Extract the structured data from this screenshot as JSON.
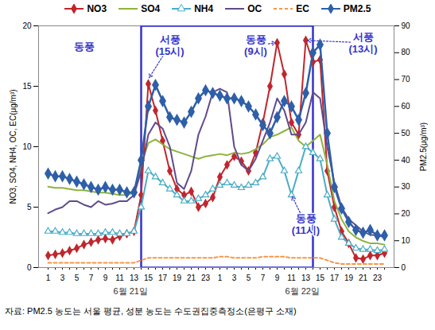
{
  "chart_data": {
    "type": "line",
    "categories": [
      "1",
      null,
      "3",
      null,
      "5",
      null,
      "7",
      null,
      "9",
      null,
      "11",
      null,
      "13",
      null,
      "15",
      null,
      "17",
      null,
      "19",
      null,
      "21",
      null,
      "23",
      null,
      "1",
      null,
      "3",
      null,
      "5",
      null,
      "7",
      null,
      "9",
      null,
      "11",
      null,
      "13",
      null,
      "15",
      null,
      "17",
      null,
      "19",
      null,
      "21",
      null,
      "23",
      null
    ],
    "x_groups": [
      {
        "label": "6월 21일",
        "start": 0,
        "end": 23
      },
      {
        "label": "6월 22일",
        "start": 24,
        "end": 47
      }
    ],
    "y_label": "NO3, SO4, NH4, OC, EC(μg/m³)",
    "y2_label": "PM2.5(μg/m³)",
    "ylim": [
      0,
      20
    ],
    "yticks": [
      0,
      5,
      10,
      15,
      20
    ],
    "y2lim": [
      0,
      90
    ],
    "y2ticks": [
      0,
      10,
      20,
      30,
      40,
      50,
      60,
      70,
      80,
      90
    ],
    "grid": false,
    "legend": "top",
    "series": [
      {
        "name": "NO3",
        "color": "#c0262d",
        "marker": "diamond",
        "line_style": "solid",
        "values": [
          1.0,
          1.1,
          1.2,
          1.4,
          1.6,
          1.9,
          2.1,
          2.3,
          2.4,
          2.3,
          2.6,
          2.8,
          3.0,
          6.0,
          15.2,
          13.0,
          10.5,
          8.0,
          6.5,
          6.0,
          6.3,
          5.0,
          5.3,
          5.8,
          7.5,
          8.5,
          9.2,
          8.8,
          8.0,
          9.5,
          12.0,
          15.0,
          18.6,
          16.0,
          12.0,
          11.0,
          18.8,
          17.0,
          17.2,
          8.0,
          5.0,
          3.0,
          2.0,
          0.8,
          0.7,
          1.0,
          1.0,
          1.2
        ]
      },
      {
        "name": "SO4",
        "color": "#8db33f",
        "marker": "none",
        "line_style": "solid",
        "values": [
          6.7,
          6.6,
          6.6,
          6.5,
          6.4,
          6.4,
          6.3,
          6.2,
          6.2,
          6.1,
          6.0,
          6.0,
          6.2,
          8.5,
          10.3,
          10.6,
          10.2,
          9.8,
          9.6,
          9.4,
          9.2,
          9.0,
          9.2,
          9.3,
          9.4,
          9.3,
          9.5,
          9.4,
          9.5,
          9.8,
          10.2,
          10.8,
          11.0,
          11.3,
          11.6,
          10.5,
          10.0,
          10.5,
          11.0,
          8.5,
          5.5,
          4.0,
          3.0,
          2.5,
          2.2,
          2.0,
          2.0,
          1.9
        ]
      },
      {
        "name": "NH4",
        "color": "#4bacc6",
        "marker": "triangle-open",
        "line_style": "solid",
        "values": [
          3.0,
          3.0,
          2.9,
          2.9,
          2.8,
          2.8,
          2.8,
          2.8,
          2.9,
          2.9,
          2.8,
          2.8,
          3.0,
          5.0,
          8.0,
          7.5,
          7.0,
          6.5,
          6.0,
          5.5,
          5.5,
          5.7,
          6.0,
          6.5,
          6.8,
          7.0,
          6.8,
          6.6,
          6.8,
          7.0,
          7.5,
          9.0,
          9.2,
          8.0,
          6.0,
          8.0,
          10.0,
          9.5,
          9.0,
          6.0,
          4.0,
          2.5,
          2.0,
          1.6,
          1.5,
          1.5,
          1.4,
          1.5
        ]
      },
      {
        "name": "OC",
        "color": "#5f4b8b",
        "marker": "none",
        "line_style": "solid",
        "values": [
          4.5,
          4.8,
          5.0,
          5.5,
          5.5,
          5.2,
          5.0,
          5.5,
          5.2,
          5.3,
          5.5,
          5.5,
          6.0,
          8.0,
          11.0,
          12.0,
          11.5,
          10.0,
          7.0,
          6.5,
          8.0,
          11.0,
          12.5,
          14.5,
          14.8,
          14.5,
          10.0,
          8.5,
          8.0,
          9.0,
          10.5,
          12.0,
          14.0,
          13.0,
          11.0,
          11.0,
          12.0,
          14.5,
          14.0,
          10.0,
          7.0,
          5.0,
          4.0,
          3.5,
          3.0,
          2.7,
          2.7,
          2.5
        ]
      },
      {
        "name": "EC",
        "color": "#f79646",
        "marker": "none",
        "line_style": "dashed",
        "values": [
          0.4,
          0.4,
          0.4,
          0.4,
          0.4,
          0.4,
          0.4,
          0.4,
          0.4,
          0.4,
          0.4,
          0.4,
          0.4,
          0.6,
          0.8,
          0.8,
          0.8,
          0.8,
          0.8,
          0.8,
          0.8,
          0.8,
          0.8,
          0.8,
          0.9,
          0.9,
          0.8,
          0.8,
          0.8,
          0.8,
          0.9,
          0.9,
          0.9,
          0.9,
          0.8,
          0.8,
          0.8,
          0.8,
          0.8,
          0.6,
          0.4,
          0.3,
          0.3,
          0.3,
          0.3,
          0.3,
          0.3,
          0.3
        ]
      },
      {
        "name": "PM2.5",
        "color": "#2e5fa8",
        "marker": "diamond",
        "line_style": "solid",
        "axis": "y2",
        "values": [
          35,
          34,
          34,
          33,
          32,
          31,
          30,
          29,
          30,
          29,
          29,
          28,
          28,
          40,
          60,
          68,
          62,
          56,
          55,
          54,
          58,
          63,
          66,
          65,
          64,
          63,
          63,
          62,
          60,
          57,
          53,
          50,
          56,
          62,
          60,
          55,
          65,
          80,
          83,
          50,
          30,
          22,
          17,
          14,
          13,
          14,
          12,
          12
        ]
      }
    ],
    "highlight": {
      "start": 13,
      "end": 37,
      "color": "#3333cc"
    },
    "annotations": [
      {
        "text": "동풍",
        "x": 5,
        "y": 18.3
      },
      {
        "text": "서풍\n(15시)",
        "x": 17,
        "y": 18.4,
        "point": [
          14,
          15.6
        ]
      },
      {
        "text": "동풍\n(9시)",
        "x": 29,
        "y": 18.4,
        "point": [
          32,
          18.6
        ]
      },
      {
        "text": "서풍\n(13시)",
        "x": 44,
        "y": 18.6,
        "point": [
          36,
          18.8
        ]
      },
      {
        "text": "동풍\n(11시)",
        "x": 36,
        "y": 3.6,
        "point": [
          34,
          6.0
        ]
      }
    ],
    "caption": "자료: PM2.5 농도는 서울 평균, 성분 농도는 수도권집중측정소(은평구 소재)"
  }
}
